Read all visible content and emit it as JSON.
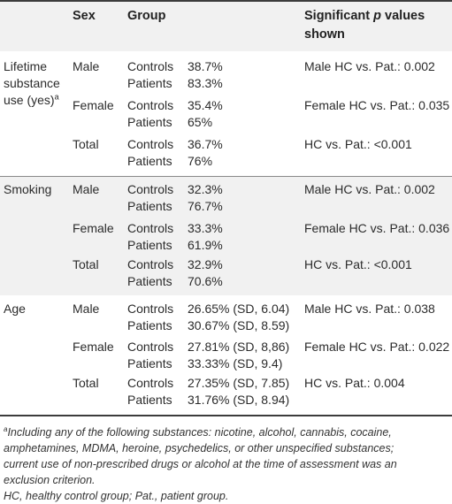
{
  "headers": {
    "sex": "Sex",
    "group": "Group",
    "significant_line1_pre": "Significant ",
    "significant_line1_p": "p",
    "significant_line1_post": " values",
    "significant_line2": "shown"
  },
  "groups": [
    {
      "label_lines": [
        "Lifetime",
        "substance",
        "use (yes)"
      ],
      "label_sup": "a",
      "rows": [
        {
          "sex": "Male",
          "controls_label": "Controls",
          "patients_label": "Patients",
          "controls": "38.7%",
          "patients": "83.3%",
          "p": "Male HC vs. Pat.: 0.002"
        },
        {
          "sex": "Female",
          "controls_label": "Controls",
          "patients_label": "Patients",
          "controls": "35.4%",
          "patients": "65%",
          "p": "Female HC vs. Pat.: 0.035"
        },
        {
          "sex": "Total",
          "controls_label": "Controls",
          "patients_label": "Patients",
          "controls": "36.7%",
          "patients": "76%",
          "p": "HC vs. Pat.: <0.001"
        }
      ]
    },
    {
      "label_lines": [
        "Smoking"
      ],
      "rows": [
        {
          "sex": "Male",
          "controls_label": "Controls",
          "patients_label": "Patients",
          "controls": "32.3%",
          "patients": "76.7%",
          "p": "Male HC vs. Pat.: 0.002"
        },
        {
          "sex": "Female",
          "controls_label": "Controls",
          "patients_label": "Patients",
          "controls": "33.3%",
          "patients": "61.9%",
          "p": "Female HC vs. Pat.: 0.036"
        },
        {
          "sex": "Total",
          "controls_label": "Controls",
          "patients_label": "Patients",
          "controls": "32.9%",
          "patients": "70.6%",
          "p": "HC vs. Pat.: <0.001"
        }
      ]
    },
    {
      "label_lines": [
        "Age"
      ],
      "rows": [
        {
          "sex": "Male",
          "controls_label": "Controls",
          "patients_label": "Patients",
          "controls": "26.65% (SD, 6.04)",
          "patients": "30.67% (SD, 8.59)",
          "p": "Male HC vs. Pat.: 0.038"
        },
        {
          "sex": "Female",
          "controls_label": "Controls",
          "patients_label": "Patients",
          "controls": "27.81% (SD, 8,86)",
          "patients": "33.33% (SD, 9.4)",
          "p": "Female HC vs. Pat.: 0.022"
        },
        {
          "sex": "Total",
          "controls_label": "Controls",
          "patients_label": "Patients",
          "controls": "27.35% (SD, 7.85)",
          "patients": "31.76% (SD, 8.94)",
          "p": "HC vs. Pat.: 0.004"
        }
      ]
    }
  ],
  "footnotes": {
    "a_marker": "a",
    "a_lines": [
      "Including any of the following substances: nicotine, alcohol, cannabis, cocaine,",
      "amphetamines, MDMA, heroine, psychedelics, or other unspecified substances;",
      "current use of non-prescribed drugs or alcohol at the time of assessment was an",
      "exclusion criterion."
    ],
    "abbrev": "HC, healthy control group; Pat., patient group."
  }
}
